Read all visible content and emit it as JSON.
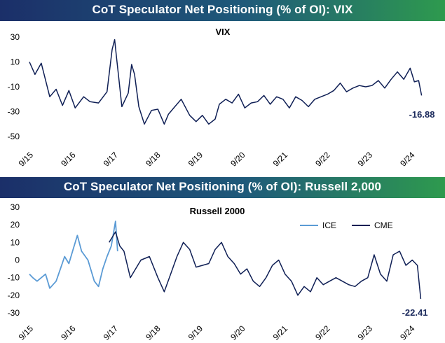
{
  "panel1": {
    "banner": "CoT Speculator Net Positioning (% of OI):  VIX"
  },
  "panel2": {
    "banner": "CoT Speculator Net Positioning (% of OI):  Russell 2,000"
  },
  "colors": {
    "cme": "#0f1f55",
    "ice": "#5b9bd5",
    "banner_left": "#1b2f69",
    "banner_right": "#2e9a4e"
  },
  "chart_data": [
    {
      "type": "line",
      "title": "VIX",
      "xlabel": "",
      "ylabel": "",
      "ylim": [
        -50,
        30
      ],
      "yticks": [
        "30",
        "10",
        "-10",
        "-30",
        "-50"
      ],
      "ytick_values": [
        30,
        10,
        -10,
        -30,
        -50
      ],
      "x_tick_labels": [
        "9/15",
        "9/16",
        "9/17",
        "9/18",
        "9/19",
        "9/20",
        "9/21",
        "9/22",
        "9/23",
        "9/24"
      ],
      "x": [
        2015.67,
        2015.8,
        2015.95,
        2016.15,
        2016.3,
        2016.45,
        2016.6,
        2016.75,
        2016.95,
        2017.1,
        2017.3,
        2017.5,
        2017.62,
        2017.68,
        2017.72,
        2017.78,
        2017.85,
        2018.0,
        2018.08,
        2018.15,
        2018.25,
        2018.38,
        2018.55,
        2018.7,
        2018.85,
        2018.95,
        2019.1,
        2019.25,
        2019.45,
        2019.6,
        2019.75,
        2019.9,
        2020.05,
        2020.15,
        2020.3,
        2020.45,
        2020.6,
        2020.75,
        2020.9,
        2021.05,
        2021.2,
        2021.35,
        2021.5,
        2021.65,
        2021.8,
        2021.95,
        2022.1,
        2022.25,
        2022.4,
        2022.55,
        2022.7,
        2022.85,
        2023.0,
        2023.15,
        2023.3,
        2023.45,
        2023.6,
        2023.75,
        2023.9,
        2024.05,
        2024.2,
        2024.35,
        2024.5,
        2024.65,
        2024.75,
        2024.85,
        2024.92
      ],
      "series": [
        {
          "name": "VIX",
          "values": [
            10,
            0,
            9,
            -18,
            -12,
            -25,
            -13,
            -27,
            -18,
            -22,
            -23,
            -14,
            20,
            28,
            15,
            -4,
            -26,
            -15,
            8,
            0,
            -26,
            -40,
            -29,
            -28,
            -40,
            -32,
            -26,
            -20,
            -33,
            -38,
            -33,
            -40,
            -36,
            -24,
            -20,
            -23,
            -16,
            -27,
            -23,
            -22,
            -17,
            -24,
            -18,
            -20,
            -27,
            -18,
            -21,
            -26,
            -20,
            -18,
            -16,
            -13,
            -7,
            -14,
            -11,
            -9,
            -10,
            -9,
            -5,
            -11,
            -4,
            2,
            -4,
            5,
            -6,
            -5,
            -17
          ]
        }
      ],
      "annotations": [
        "-16.88"
      ]
    },
    {
      "type": "line",
      "title": "Russell 2000",
      "xlabel": "",
      "ylabel": "",
      "ylim": [
        -30,
        30
      ],
      "yticks": [
        "30",
        "20",
        "10",
        "0",
        "-10",
        "-20",
        "-30"
      ],
      "ytick_values": [
        30,
        20,
        10,
        0,
        -10,
        -20,
        -30
      ],
      "x_tick_labels": [
        "9/15",
        "9/16",
        "9/17",
        "9/18",
        "9/19",
        "9/20",
        "9/21",
        "9/22",
        "9/23",
        "9/24"
      ],
      "legend": [
        "ICE",
        "CME"
      ],
      "series": [
        {
          "name": "ICE",
          "x": [
            2015.67,
            2015.75,
            2015.85,
            2015.95,
            2016.05,
            2016.15,
            2016.3,
            2016.4,
            2016.5,
            2016.6,
            2016.7,
            2016.8,
            2016.9,
            2017.05,
            2017.2,
            2017.3,
            2017.4,
            2017.5,
            2017.6,
            2017.7,
            2017.75
          ],
          "values": [
            -8,
            -10,
            -12,
            -10,
            -8,
            -16,
            -12,
            -5,
            2,
            -2,
            6,
            14,
            5,
            0,
            -12,
            -15,
            -5,
            2,
            8,
            22,
            5
          ]
        },
        {
          "name": "CME",
          "x": [
            2017.55,
            2017.7,
            2017.8,
            2017.9,
            2018.05,
            2018.15,
            2018.3,
            2018.5,
            2018.7,
            2018.85,
            2019.0,
            2019.15,
            2019.3,
            2019.45,
            2019.6,
            2019.75,
            2019.9,
            2020.05,
            2020.2,
            2020.35,
            2020.5,
            2020.65,
            2020.8,
            2020.95,
            2021.1,
            2021.25,
            2021.4,
            2021.55,
            2021.7,
            2021.85,
            2022.0,
            2022.15,
            2022.3,
            2022.45,
            2022.6,
            2022.75,
            2022.9,
            2023.05,
            2023.2,
            2023.35,
            2023.5,
            2023.65,
            2023.8,
            2023.95,
            2024.1,
            2024.25,
            2024.4,
            2024.55,
            2024.7,
            2024.82,
            2024.9
          ],
          "values": [
            10,
            16,
            8,
            5,
            -10,
            -6,
            0,
            2,
            -10,
            -18,
            -8,
            2,
            10,
            6,
            -4,
            -3,
            -2,
            6,
            10,
            2,
            -2,
            -8,
            -5,
            -12,
            -15,
            -10,
            -3,
            0,
            -8,
            -12,
            -20,
            -15,
            -18,
            -10,
            -14,
            -12,
            -10,
            -12,
            -14,
            -15,
            -12,
            -10,
            3,
            -8,
            -12,
            3,
            5,
            -3,
            0,
            -3,
            -22
          ]
        }
      ],
      "annotations": [
        "-22.41"
      ]
    }
  ]
}
